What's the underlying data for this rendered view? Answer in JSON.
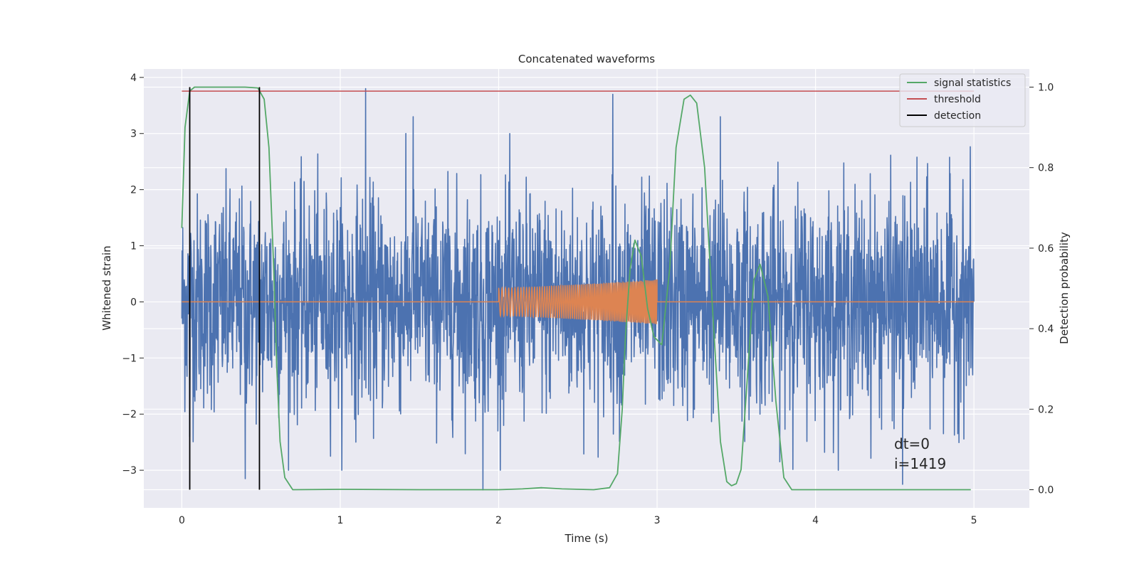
{
  "chart_data": {
    "type": "line",
    "title": "Concatenated waveforms",
    "xlabel": "Time (s)",
    "ylabel": "Whitened strain",
    "y2label": "Detection probability",
    "xlim": [
      -0.24,
      5.35
    ],
    "ylim": [
      -3.67,
      4.15
    ],
    "y2lim": [
      -0.045,
      1.045
    ],
    "x_ticks": [
      0,
      1,
      2,
      3,
      4,
      5
    ],
    "y_ticks": [
      -3,
      -2,
      -1,
      0,
      1,
      2,
      3,
      4
    ],
    "y2_ticks": [
      0.0,
      0.2,
      0.4,
      0.6,
      0.8,
      1.0
    ],
    "grid": true,
    "legend_position": "top-right",
    "series": [
      {
        "name": "",
        "axis": "left",
        "color": "#4c72b0",
        "kind": "noise",
        "x_range": [
          0,
          5
        ],
        "spikes": [
          {
            "x": 0.05,
            "y": -2.4
          },
          {
            "x": 0.4,
            "y": -3.15
          },
          {
            "x": 1.16,
            "y": 3.8
          },
          {
            "x": 1.46,
            "y": 3.3
          },
          {
            "x": 1.9,
            "y": -3.35
          },
          {
            "x": 2.72,
            "y": 3.7
          },
          {
            "x": 3.4,
            "y": 3.3
          },
          {
            "x": 4.55,
            "y": -3.25
          }
        ]
      },
      {
        "name": "",
        "axis": "left",
        "color": "#dd8452",
        "kind": "chirp",
        "x": [
          0,
          2,
          2,
          3,
          3,
          5
        ],
        "start": 2.0,
        "end": 3.0,
        "amp_start": 0.25,
        "amp_end": 0.4
      },
      {
        "name": "signal statistics",
        "axis": "right",
        "color": "#55a868",
        "x": [
          0.0,
          0.02,
          0.05,
          0.08,
          0.1,
          0.2,
          0.3,
          0.4,
          0.48,
          0.52,
          0.55,
          0.58,
          0.6,
          0.62,
          0.65,
          0.7,
          1.0,
          1.5,
          2.0,
          2.15,
          2.27,
          2.4,
          2.6,
          2.7,
          2.75,
          2.78,
          2.8,
          2.83,
          2.86,
          2.9,
          2.94,
          2.98,
          3.03,
          3.08,
          3.12,
          3.17,
          3.21,
          3.25,
          3.3,
          3.35,
          3.4,
          3.44,
          3.47,
          3.5,
          3.53,
          3.57,
          3.61,
          3.65,
          3.7,
          3.75,
          3.8,
          3.85,
          4.0,
          4.5,
          4.98
        ],
        "values": [
          0.65,
          0.9,
          0.99,
          1.0,
          1.0,
          1.0,
          1.0,
          1.0,
          0.998,
          0.97,
          0.85,
          0.55,
          0.3,
          0.12,
          0.03,
          0.0,
          0.001,
          0.0,
          0.0,
          0.002,
          0.005,
          0.002,
          0.0,
          0.005,
          0.04,
          0.2,
          0.38,
          0.55,
          0.62,
          0.58,
          0.45,
          0.38,
          0.36,
          0.55,
          0.85,
          0.97,
          0.98,
          0.96,
          0.8,
          0.45,
          0.12,
          0.02,
          0.01,
          0.015,
          0.05,
          0.28,
          0.52,
          0.56,
          0.48,
          0.22,
          0.03,
          0.0,
          0.0,
          0.0,
          0.0
        ]
      },
      {
        "name": "threshold",
        "axis": "right",
        "color": "#c44e52",
        "x": [
          0,
          5
        ],
        "values": [
          0.99,
          0.99
        ]
      },
      {
        "name": "detection",
        "axis": "right",
        "color": "#000000",
        "kind": "vlines",
        "x": [
          0.05,
          0.49
        ],
        "values": [
          1.0,
          1.0
        ]
      }
    ],
    "annotations": [
      "dt=0",
      "i=1419"
    ]
  }
}
